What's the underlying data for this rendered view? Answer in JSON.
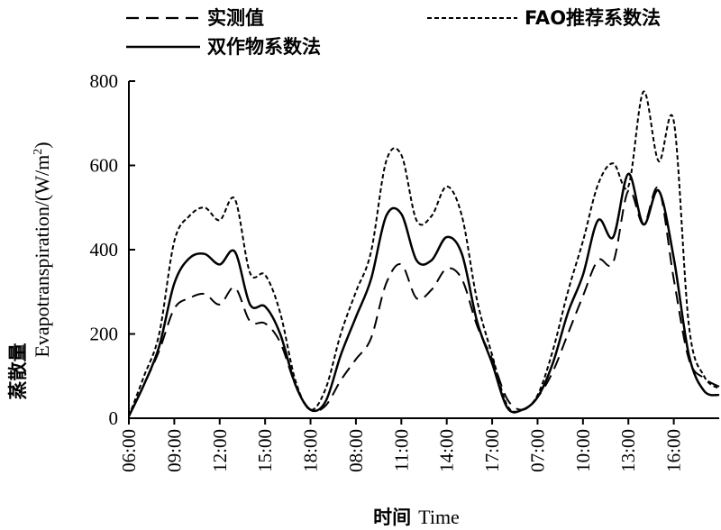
{
  "chart_data": {
    "type": "line",
    "xlabel_cn": "时间",
    "xlabel_en": "Time",
    "ylabel_cn": "蒸散量",
    "ylabel_en": "Evapotranspiration/(W/m",
    "ylabel_sup": "2",
    "ylabel_close": ")",
    "ylim": [
      0,
      800
    ],
    "yticks": [
      0,
      200,
      400,
      600,
      800
    ],
    "xticks": [
      {
        "label": "06:00",
        "x": 0
      },
      {
        "label": "09:00",
        "x": 3
      },
      {
        "label": "12:00",
        "x": 6
      },
      {
        "label": "15:00",
        "x": 9
      },
      {
        "label": "18:00",
        "x": 12
      },
      {
        "label": "08:00",
        "x": 15
      },
      {
        "label": "11:00",
        "x": 18
      },
      {
        "label": "14:00",
        "x": 21
      },
      {
        "label": "17:00",
        "x": 24
      },
      {
        "label": "07:00",
        "x": 27
      },
      {
        "label": "10:00",
        "x": 30
      },
      {
        "label": "13:00",
        "x": 33
      },
      {
        "label": "16:00",
        "x": 36
      }
    ],
    "xlim": [
      0,
      39
    ],
    "series": [
      {
        "name": "实测值",
        "style": "dash",
        "points": [
          [
            0,
            5
          ],
          [
            1,
            80
          ],
          [
            2,
            160
          ],
          [
            3,
            260
          ],
          [
            4,
            285
          ],
          [
            5,
            295
          ],
          [
            6,
            270
          ],
          [
            7,
            310
          ],
          [
            8,
            230
          ],
          [
            9,
            225
          ],
          [
            10,
            180
          ],
          [
            11,
            80
          ],
          [
            12,
            20
          ],
          [
            13,
            30
          ],
          [
            14,
            90
          ],
          [
            15,
            140
          ],
          [
            16,
            190
          ],
          [
            17,
            320
          ],
          [
            18,
            365
          ],
          [
            19,
            285
          ],
          [
            20,
            305
          ],
          [
            21,
            355
          ],
          [
            22,
            330
          ],
          [
            23,
            220
          ],
          [
            24,
            140
          ],
          [
            25,
            45
          ],
          [
            26,
            20
          ],
          [
            27,
            50
          ],
          [
            28,
            110
          ],
          [
            29,
            200
          ],
          [
            30,
            290
          ],
          [
            31,
            375
          ],
          [
            32,
            370
          ],
          [
            33,
            540
          ],
          [
            34,
            460
          ],
          [
            35,
            545
          ],
          [
            36,
            330
          ],
          [
            37,
            140
          ],
          [
            38,
            95
          ],
          [
            39,
            75
          ]
        ]
      },
      {
        "name": "FAO推荐系数法",
        "style": "shortdash",
        "points": [
          [
            0,
            5
          ],
          [
            1,
            100
          ],
          [
            2,
            200
          ],
          [
            3,
            420
          ],
          [
            4,
            480
          ],
          [
            5,
            500
          ],
          [
            6,
            470
          ],
          [
            7,
            520
          ],
          [
            8,
            345
          ],
          [
            9,
            340
          ],
          [
            10,
            250
          ],
          [
            11,
            90
          ],
          [
            12,
            20
          ],
          [
            13,
            70
          ],
          [
            14,
            200
          ],
          [
            15,
            300
          ],
          [
            16,
            395
          ],
          [
            17,
            610
          ],
          [
            18,
            625
          ],
          [
            19,
            470
          ],
          [
            20,
            480
          ],
          [
            21,
            550
          ],
          [
            22,
            480
          ],
          [
            23,
            280
          ],
          [
            24,
            150
          ],
          [
            25,
            30
          ],
          [
            26,
            20
          ],
          [
            27,
            55
          ],
          [
            28,
            160
          ],
          [
            29,
            300
          ],
          [
            30,
            420
          ],
          [
            31,
            555
          ],
          [
            32,
            605
          ],
          [
            33,
            550
          ],
          [
            34,
            775
          ],
          [
            35,
            610
          ],
          [
            36,
            705
          ],
          [
            37,
            220
          ],
          [
            38,
            100
          ],
          [
            39,
            70
          ]
        ]
      },
      {
        "name": "双作物系数法",
        "style": "solid",
        "points": [
          [
            0,
            5
          ],
          [
            1,
            80
          ],
          [
            2,
            170
          ],
          [
            3,
            320
          ],
          [
            4,
            380
          ],
          [
            5,
            390
          ],
          [
            6,
            365
          ],
          [
            7,
            395
          ],
          [
            8,
            270
          ],
          [
            9,
            265
          ],
          [
            10,
            200
          ],
          [
            11,
            80
          ],
          [
            12,
            20
          ],
          [
            13,
            40
          ],
          [
            14,
            150
          ],
          [
            15,
            240
          ],
          [
            16,
            330
          ],
          [
            17,
            480
          ],
          [
            18,
            485
          ],
          [
            19,
            375
          ],
          [
            20,
            375
          ],
          [
            21,
            430
          ],
          [
            22,
            390
          ],
          [
            23,
            230
          ],
          [
            24,
            130
          ],
          [
            25,
            25
          ],
          [
            26,
            20
          ],
          [
            27,
            50
          ],
          [
            28,
            130
          ],
          [
            29,
            250
          ],
          [
            30,
            340
          ],
          [
            31,
            470
          ],
          [
            32,
            430
          ],
          [
            33,
            580
          ],
          [
            34,
            460
          ],
          [
            35,
            540
          ],
          [
            36,
            380
          ],
          [
            37,
            150
          ],
          [
            38,
            65
          ],
          [
            39,
            55
          ]
        ]
      }
    ]
  }
}
